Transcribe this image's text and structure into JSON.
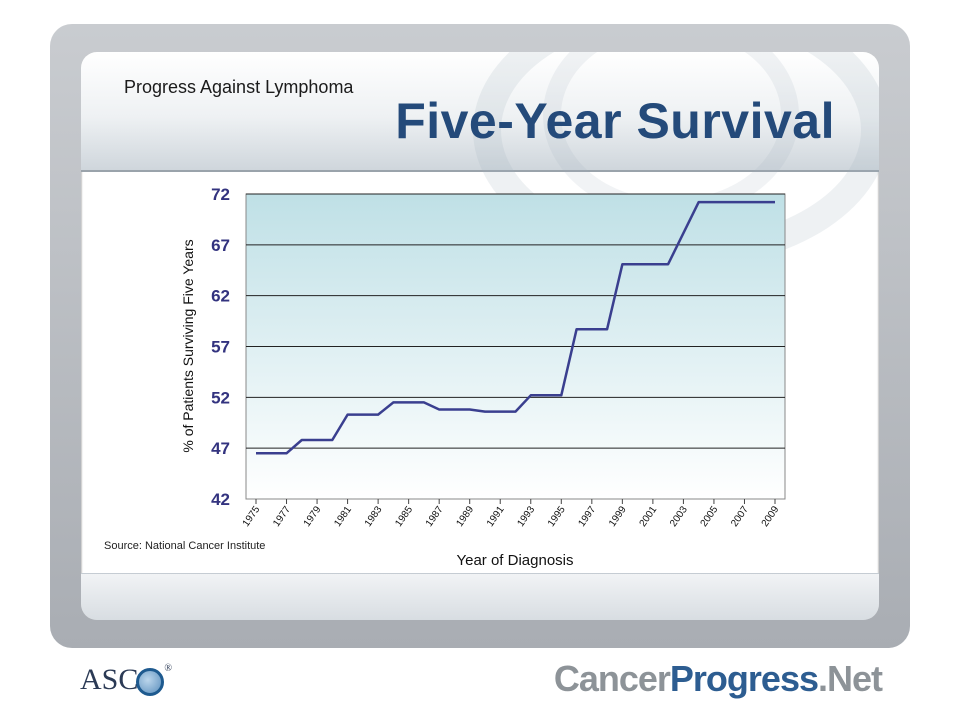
{
  "slide": {
    "subtitle": "Progress Against Lymphoma",
    "title": "Five-Year Survival",
    "source": "Source: National Cancer Institute"
  },
  "logos": {
    "asco_text": "ASC",
    "cancer_progress_part1": "Cancer",
    "cancer_progress_part2": "Progress",
    "cancer_progress_part3": ".Net"
  },
  "colors": {
    "title": "#244a7a",
    "line": "#3a3f8f",
    "plot_top": "#bfe0e6",
    "plot_bottom": "#ffffff",
    "tick_label": "#33337f"
  },
  "chart_data": {
    "type": "line",
    "xlabel": "Year of Diagnosis",
    "ylabel": "% of Patients Surviving Five Years",
    "ylim": [
      42,
      72
    ],
    "yticks": [
      42,
      47,
      52,
      57,
      62,
      67,
      72
    ],
    "xlim": [
      1975,
      2009
    ],
    "xticks": [
      1975,
      1977,
      1979,
      1981,
      1983,
      1985,
      1987,
      1989,
      1991,
      1993,
      1995,
      1997,
      1999,
      2001,
      2003,
      2005,
      2007,
      2009
    ],
    "grid": true,
    "series": [
      {
        "x": [
          1975,
          1977,
          1978,
          1980,
          1981,
          1983,
          1984,
          1986,
          1987,
          1989,
          1990,
          1992,
          1993,
          1995,
          1996,
          1998,
          1999,
          2001,
          2002,
          2004,
          2005,
          2009
        ],
        "y": [
          46.5,
          46.5,
          47.8,
          47.8,
          50.3,
          50.3,
          51.5,
          51.5,
          50.8,
          50.8,
          50.6,
          50.6,
          52.2,
          52.2,
          58.7,
          58.7,
          65.1,
          65.1,
          65.1,
          71.2,
          71.2,
          71.2
        ]
      }
    ]
  }
}
